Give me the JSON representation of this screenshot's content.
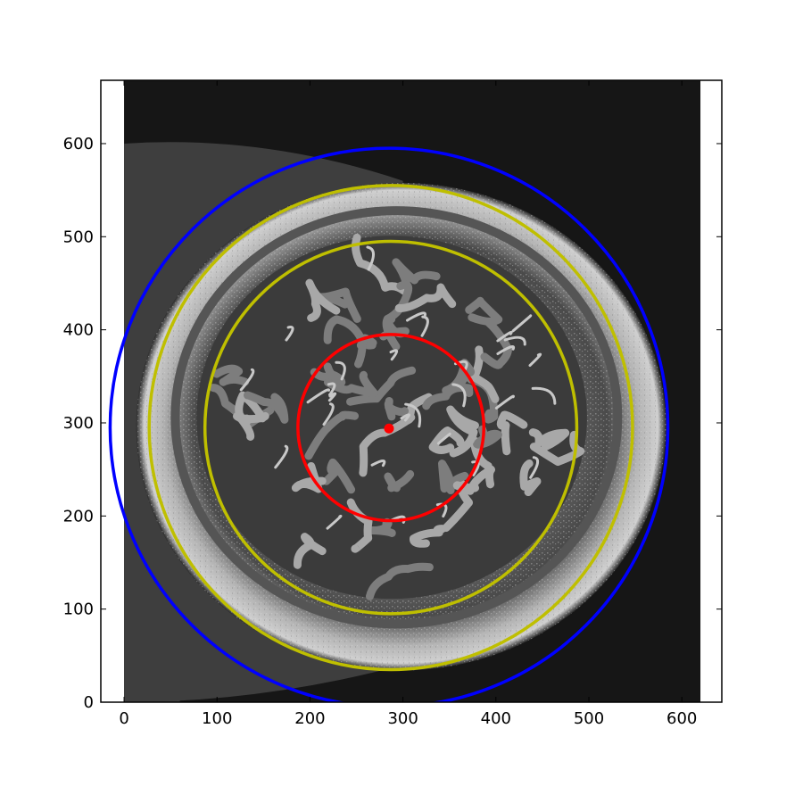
{
  "chart_data": {
    "type": "scatter",
    "title": "",
    "xlabel": "",
    "ylabel": "",
    "xlim": [
      -25,
      643
    ],
    "ylim": [
      0,
      668
    ],
    "grid": false,
    "x_ticks": [
      0,
      100,
      200,
      300,
      400,
      500,
      600
    ],
    "y_ticks": [
      0,
      100,
      200,
      300,
      400,
      500,
      600
    ],
    "x_tick_labels": [
      "0",
      "100",
      "200",
      "300",
      "400",
      "500",
      "600"
    ],
    "y_tick_labels": [
      "0",
      "100",
      "200",
      "300",
      "400",
      "500",
      "600"
    ],
    "background_image": {
      "description_free": true,
      "extent_x": [
        0,
        620
      ],
      "extent_y": [
        0,
        668
      ],
      "center": [
        298,
        296
      ]
    },
    "circles": [
      {
        "id": "outer-circle",
        "cx": 285,
        "cy": 295,
        "r": 300,
        "color": "#0000ff"
      },
      {
        "id": "yellow-outer-circle",
        "cx": 287,
        "cy": 295,
        "r": 260,
        "color": "#bfbf00"
      },
      {
        "id": "yellow-inner-circle",
        "cx": 287,
        "cy": 295,
        "r": 200,
        "color": "#bfbf00"
      },
      {
        "id": "red-inner-circle",
        "cx": 287,
        "cy": 295,
        "r": 100,
        "color": "#ff0000"
      }
    ],
    "center_point": {
      "x": 285,
      "y": 294,
      "color": "#ff0000"
    }
  }
}
